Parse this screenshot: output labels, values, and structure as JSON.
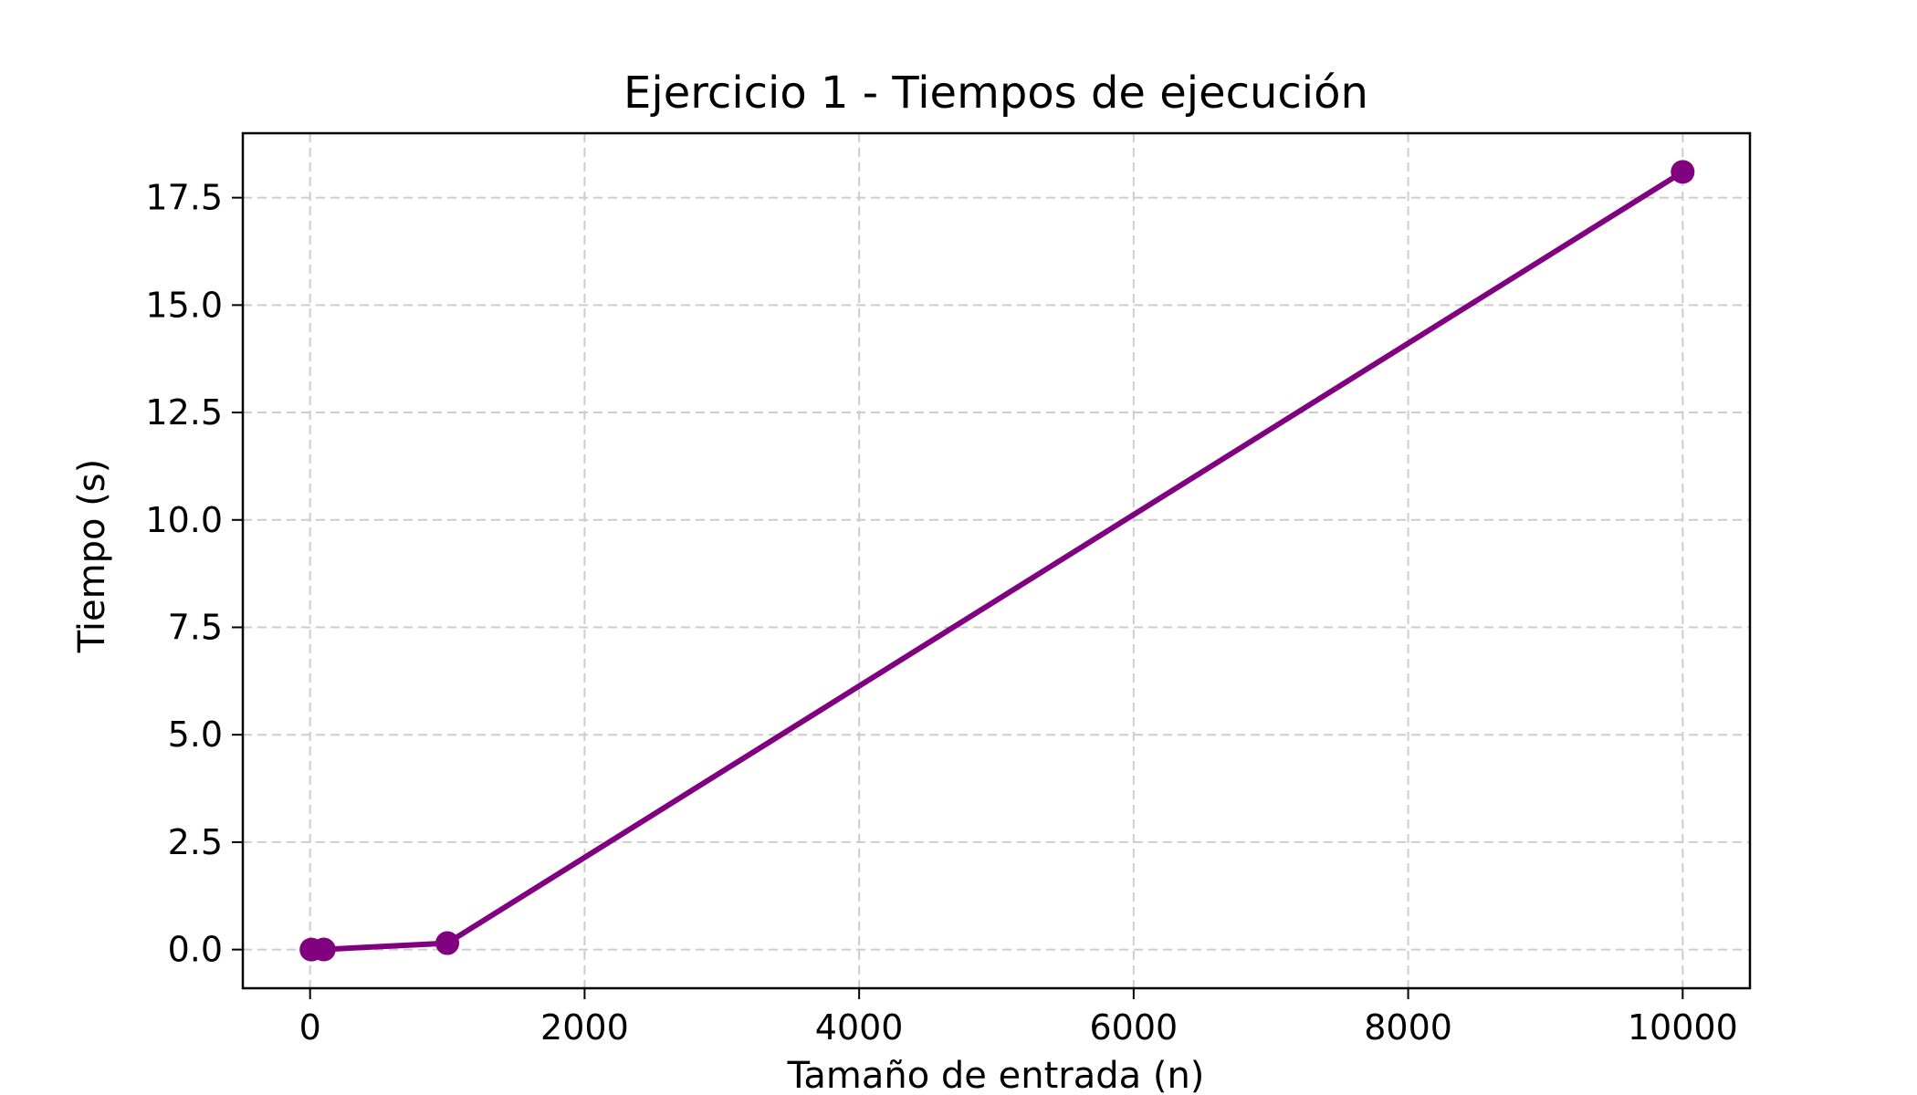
{
  "chart_data": {
    "type": "line",
    "title": "Ejercicio 1 - Tiempos de ejecución",
    "xlabel": "Tamaño de entrada (n)",
    "ylabel": "Tiempo (s)",
    "x": [
      10,
      100,
      1000,
      10000
    ],
    "series": [
      {
        "values": [
          0.0,
          0.002,
          0.15,
          18.1
        ],
        "color": "#800080",
        "marker": "circle"
      }
    ],
    "xlim": [
      -490,
      10490
    ],
    "ylim": [
      -0.9,
      19.0
    ],
    "xticks": [
      0,
      2000,
      4000,
      6000,
      8000,
      10000
    ],
    "xtick_labels": [
      "0",
      "2000",
      "4000",
      "6000",
      "8000",
      "10000"
    ],
    "yticks": [
      0,
      2.5,
      5,
      7.5,
      10,
      12.5,
      15,
      17.5
    ],
    "ytick_labels": [
      "0.0",
      "2.5",
      "5.0",
      "7.5",
      "10.0",
      "12.5",
      "15.0",
      "17.5"
    ],
    "grid": true,
    "grid_style": "dashed",
    "legend": "none"
  }
}
